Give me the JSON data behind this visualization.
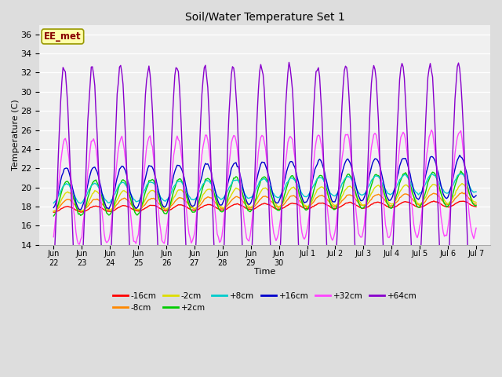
{
  "title": "Soil/Water Temperature Set 1",
  "xlabel": "Time",
  "ylabel": "Temperature (C)",
  "ylim": [
    14,
    37
  ],
  "yticks": [
    14,
    16,
    18,
    20,
    22,
    24,
    26,
    28,
    30,
    32,
    34,
    36
  ],
  "background_color": "#dddddd",
  "plot_bg_color": "#f0f0f0",
  "grid_color": "#ffffff",
  "watermark": "EE_met",
  "legend_colors": [
    "#ff0000",
    "#ff8800",
    "#dddd00",
    "#00cc00",
    "#00cccc",
    "#0000cc",
    "#ff44ff",
    "#8800cc"
  ],
  "legend_labels": [
    "-16cm",
    "-8cm",
    "-2cm",
    "+2cm",
    "+8cm",
    "+16cm",
    "+32cm",
    "+64cm"
  ],
  "base_temps": [
    17.7,
    18.1,
    18.5,
    18.8,
    19.3,
    19.8,
    19.5,
    19.5
  ],
  "trends": [
    0.04,
    0.05,
    0.06,
    0.07,
    0.08,
    0.09,
    0.06,
    0.03
  ],
  "amplitudes": [
    0.3,
    0.6,
    1.0,
    1.8,
    1.0,
    2.2,
    5.5,
    13.0
  ],
  "phases": [
    0.0,
    0.0,
    0.0,
    0.2,
    0.3,
    0.4,
    0.6,
    0.8
  ],
  "noises": [
    0.02,
    0.03,
    0.04,
    0.05,
    0.04,
    0.06,
    0.12,
    0.2
  ],
  "tick_labels": [
    "Jun\n22",
    "Jun\n23",
    "Jun\n24",
    "Jun\n25",
    "Jun\n26",
    "Jun\n27",
    "Jun\n28",
    "Jun\n29",
    "Jun\n30",
    "Jul 1",
    "Jul 2",
    "Jul 3",
    "Jul 4",
    "Jul 5",
    "Jul 6",
    "Jul 7"
  ],
  "xlim": [
    0,
    15
  ],
  "n_days": 15,
  "pts_per_day": 24
}
